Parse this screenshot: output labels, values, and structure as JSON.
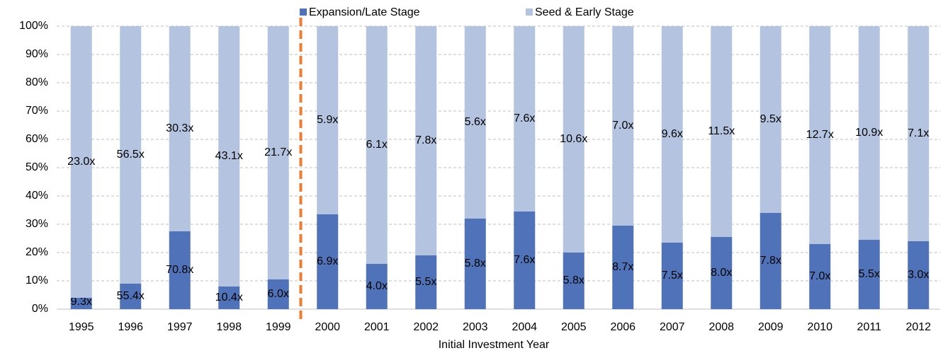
{
  "chart_data": {
    "type": "stacked_bar_100",
    "x_label": "Initial Investment Year",
    "categories": [
      "1995",
      "1996",
      "1997",
      "1998",
      "1999",
      "2000",
      "2001",
      "2002",
      "2003",
      "2004",
      "2005",
      "2006",
      "2007",
      "2008",
      "2009",
      "2010",
      "2011",
      "2012"
    ],
    "series": [
      {
        "name": "Expansion/Late Stage",
        "color": "#4f72b8",
        "values": [
          4,
          9,
          27.5,
          8,
          10.5,
          33.5,
          16,
          19,
          32,
          34.5,
          20,
          29.5,
          23.5,
          25.5,
          34,
          23,
          24.5,
          24
        ],
        "annotations": [
          "9.3x",
          "55.4x",
          "70.8x",
          "10.4x",
          "6.0x",
          "6.9x",
          "4.0x",
          "5.5x",
          "5.8x",
          "7.6x",
          "5.8x",
          "8.7x",
          "7.5x",
          "8.0x",
          "7.8x",
          "7.0x",
          "5.5x",
          "3.0x"
        ]
      },
      {
        "name": "Seed & Early Stage",
        "color": "#b4c3e0",
        "values": [
          96,
          91,
          72.5,
          92,
          89.5,
          66.5,
          84,
          81,
          68,
          65.5,
          80,
          70.5,
          76.5,
          74.5,
          66,
          77,
          75.5,
          76
        ],
        "annotations": [
          "23.0x",
          "56.5x",
          "30.3x",
          "43.1x",
          "21.7x",
          "5.9x",
          "6.1x",
          "7.8x",
          "5.6x",
          "7.6x",
          "10.6x",
          "7.0x",
          "9.6x",
          "11.5x",
          "9.5x",
          "12.7x",
          "10.9x",
          "7.1x"
        ]
      }
    ],
    "ylim": [
      0,
      100
    ],
    "yticks": [
      {
        "value": 0,
        "label": "0%"
      },
      {
        "value": 10,
        "label": "10%"
      },
      {
        "value": 20,
        "label": "20%"
      },
      {
        "value": 30,
        "label": "30%"
      },
      {
        "value": 40,
        "label": "40%"
      },
      {
        "value": 50,
        "label": "50%"
      },
      {
        "value": 60,
        "label": "60%"
      },
      {
        "value": 70,
        "label": "70%"
      },
      {
        "value": 80,
        "label": "80%"
      },
      {
        "value": 90,
        "label": "90%"
      },
      {
        "value": 100,
        "label": "100%"
      }
    ],
    "grid": true,
    "legend": "top"
  }
}
